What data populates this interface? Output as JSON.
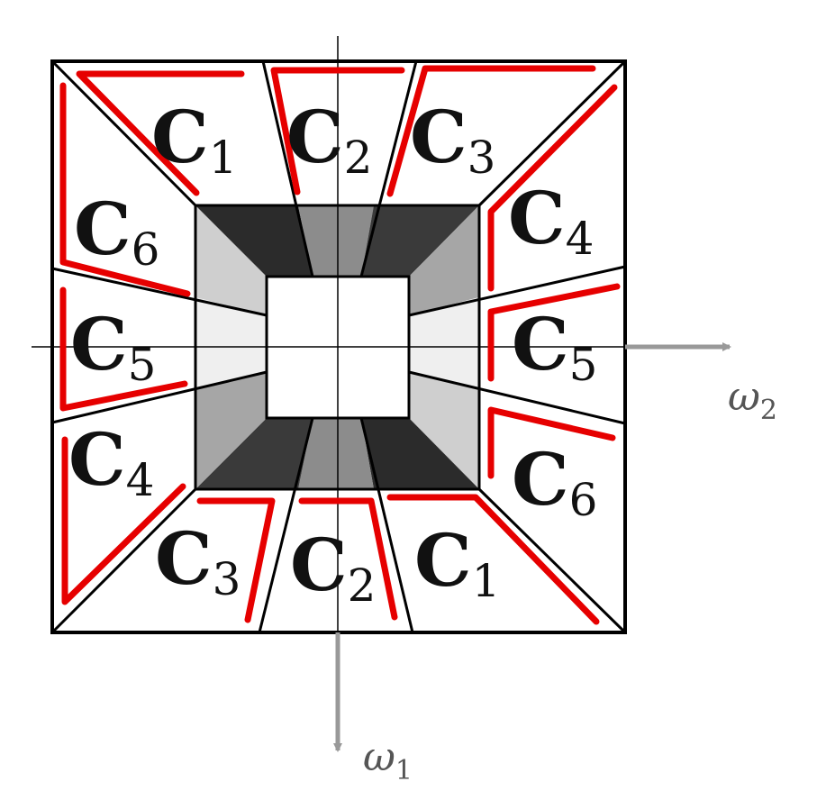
{
  "colors": {
    "outline": "#000000",
    "red_marker": "#e60000",
    "axis_arrow": "#999999",
    "dark_trapezoid": "#2b2b2b",
    "mid_trapezoid": "#8c8c8c",
    "medium_gray": "#a6a6a6",
    "light_gray": "#cfcfcf",
    "very_light_gray": "#efefef"
  },
  "axes": {
    "horizontal": {
      "symbol": "ω",
      "subscript": "2"
    },
    "vertical": {
      "symbol": "ω",
      "subscript": "1"
    }
  },
  "regions": [
    {
      "id": "top-c1",
      "main": "C",
      "sub": "1"
    },
    {
      "id": "top-c2",
      "main": "C",
      "sub": "2"
    },
    {
      "id": "top-c3",
      "main": "C",
      "sub": "3"
    },
    {
      "id": "right-c4",
      "main": "C",
      "sub": "4"
    },
    {
      "id": "right-c5",
      "main": "C",
      "sub": "5"
    },
    {
      "id": "right-c6",
      "main": "C",
      "sub": "6"
    },
    {
      "id": "bottom-c1",
      "main": "C",
      "sub": "1"
    },
    {
      "id": "bottom-c2",
      "main": "C",
      "sub": "2"
    },
    {
      "id": "bottom-c3",
      "main": "C",
      "sub": "3"
    },
    {
      "id": "left-c4",
      "main": "C",
      "sub": "4"
    },
    {
      "id": "left-c5",
      "main": "C",
      "sub": "5"
    },
    {
      "id": "left-c6",
      "main": "C",
      "sub": "6"
    }
  ]
}
